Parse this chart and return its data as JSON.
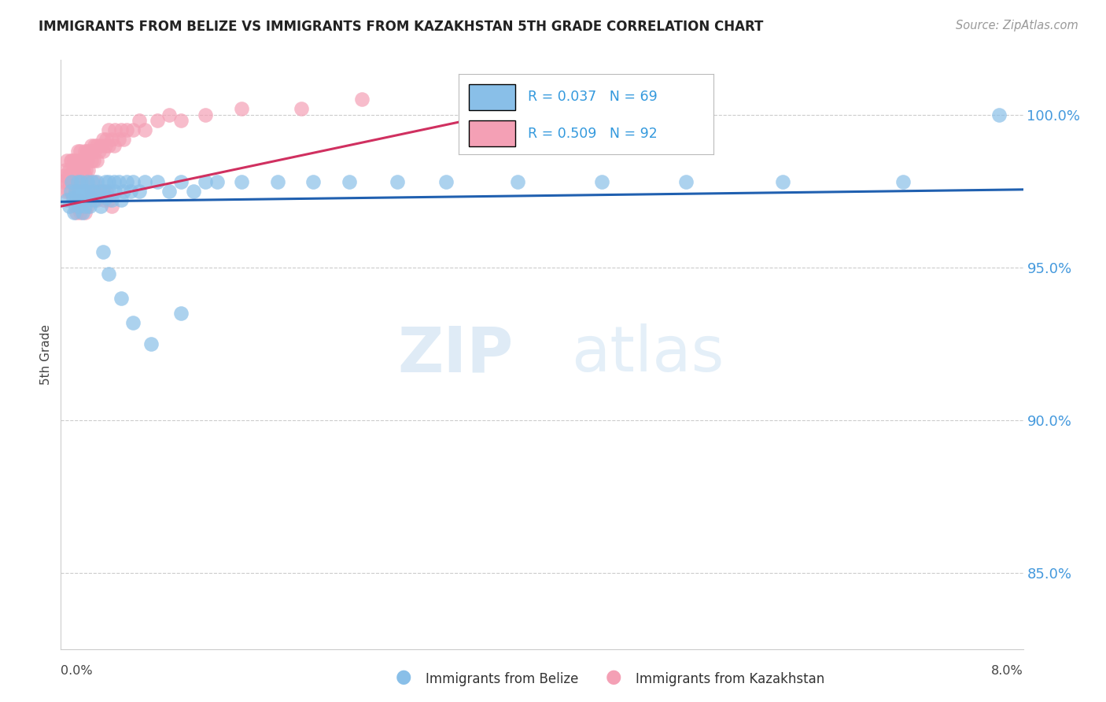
{
  "title": "IMMIGRANTS FROM BELIZE VS IMMIGRANTS FROM KAZAKHSTAN 5TH GRADE CORRELATION CHART",
  "source": "Source: ZipAtlas.com",
  "ylabel": "5th Grade",
  "right_yticks": [
    85.0,
    90.0,
    95.0,
    100.0
  ],
  "xmin": 0.0,
  "xmax": 8.0,
  "ymin": 82.5,
  "ymax": 101.8,
  "belize_color": "#89bfe8",
  "kazakhstan_color": "#f4a0b5",
  "belize_line_color": "#2060b0",
  "kazakhstan_line_color": "#d03060",
  "R_belize": 0.037,
  "N_belize": 69,
  "R_kazakhstan": 0.509,
  "N_kazakhstan": 92,
  "legend_belize": "Immigrants from Belize",
  "legend_kazakhstan": "Immigrants from Kazakhstan",
  "watermark_zip": "ZIP",
  "watermark_atlas": "atlas",
  "belize_x": [
    0.05,
    0.07,
    0.08,
    0.09,
    0.1,
    0.11,
    0.12,
    0.13,
    0.14,
    0.15,
    0.15,
    0.16,
    0.17,
    0.18,
    0.18,
    0.19,
    0.2,
    0.2,
    0.21,
    0.22,
    0.23,
    0.24,
    0.25,
    0.26,
    0.27,
    0.28,
    0.3,
    0.32,
    0.33,
    0.35,
    0.37,
    0.38,
    0.4,
    0.4,
    0.42,
    0.44,
    0.45,
    0.48,
    0.5,
    0.52,
    0.55,
    0.58,
    0.6,
    0.65,
    0.7,
    0.8,
    0.9,
    1.0,
    1.1,
    1.2,
    1.3,
    1.5,
    1.8,
    2.1,
    2.4,
    2.8,
    3.2,
    3.8,
    4.5,
    5.2,
    6.0,
    7.0,
    7.8,
    0.35,
    0.4,
    0.5,
    0.6,
    0.75,
    1.0
  ],
  "belize_y": [
    97.2,
    97.0,
    97.5,
    97.8,
    97.3,
    96.8,
    97.5,
    97.2,
    97.8,
    97.0,
    97.5,
    97.2,
    97.8,
    97.5,
    96.8,
    97.3,
    97.5,
    97.0,
    97.2,
    97.8,
    97.5,
    97.0,
    97.3,
    97.8,
    97.5,
    97.2,
    97.8,
    97.5,
    97.0,
    97.5,
    97.8,
    97.3,
    97.5,
    97.8,
    97.2,
    97.8,
    97.5,
    97.8,
    97.2,
    97.5,
    97.8,
    97.5,
    97.8,
    97.5,
    97.8,
    97.8,
    97.5,
    97.8,
    97.5,
    97.8,
    97.8,
    97.8,
    97.8,
    97.8,
    97.8,
    97.8,
    97.8,
    97.8,
    97.8,
    97.8,
    97.8,
    97.8,
    100.0,
    95.5,
    94.8,
    94.0,
    93.2,
    92.5,
    93.5
  ],
  "kazakhstan_x": [
    0.02,
    0.03,
    0.04,
    0.04,
    0.05,
    0.05,
    0.06,
    0.06,
    0.07,
    0.07,
    0.08,
    0.08,
    0.09,
    0.09,
    0.1,
    0.1,
    0.11,
    0.11,
    0.12,
    0.12,
    0.13,
    0.13,
    0.14,
    0.14,
    0.15,
    0.15,
    0.16,
    0.16,
    0.17,
    0.17,
    0.18,
    0.18,
    0.19,
    0.19,
    0.2,
    0.2,
    0.21,
    0.21,
    0.22,
    0.22,
    0.23,
    0.24,
    0.25,
    0.25,
    0.26,
    0.27,
    0.28,
    0.28,
    0.3,
    0.3,
    0.32,
    0.33,
    0.35,
    0.35,
    0.37,
    0.38,
    0.4,
    0.4,
    0.42,
    0.44,
    0.45,
    0.48,
    0.5,
    0.52,
    0.55,
    0.6,
    0.65,
    0.7,
    0.8,
    0.9,
    1.0,
    1.2,
    1.5,
    2.0,
    2.5,
    0.25,
    0.3,
    0.35,
    0.4,
    0.42,
    0.28,
    0.32,
    0.36,
    0.38,
    0.22,
    0.24,
    0.2,
    0.18,
    0.16,
    0.15,
    0.13,
    0.12
  ],
  "kazakhstan_y": [
    97.8,
    98.0,
    97.5,
    98.2,
    97.8,
    98.5,
    97.5,
    98.0,
    98.2,
    97.8,
    98.5,
    97.8,
    98.0,
    98.5,
    98.2,
    97.8,
    98.5,
    98.0,
    98.2,
    97.8,
    98.5,
    98.0,
    98.2,
    98.8,
    98.5,
    98.0,
    98.2,
    98.8,
    98.0,
    98.5,
    98.2,
    97.8,
    98.5,
    98.2,
    98.8,
    98.0,
    98.5,
    98.2,
    98.8,
    98.5,
    98.2,
    98.8,
    98.5,
    99.0,
    98.8,
    98.5,
    98.8,
    99.0,
    98.5,
    99.0,
    98.8,
    99.0,
    98.8,
    99.2,
    99.0,
    99.2,
    99.0,
    99.5,
    99.2,
    99.0,
    99.5,
    99.2,
    99.5,
    99.2,
    99.5,
    99.5,
    99.8,
    99.5,
    99.8,
    100.0,
    99.8,
    100.0,
    100.2,
    100.2,
    100.5,
    97.5,
    97.2,
    97.5,
    97.2,
    97.0,
    97.8,
    97.5,
    97.2,
    97.5,
    97.0,
    97.2,
    96.8,
    97.0,
    96.8,
    97.2,
    96.8,
    97.0
  ]
}
